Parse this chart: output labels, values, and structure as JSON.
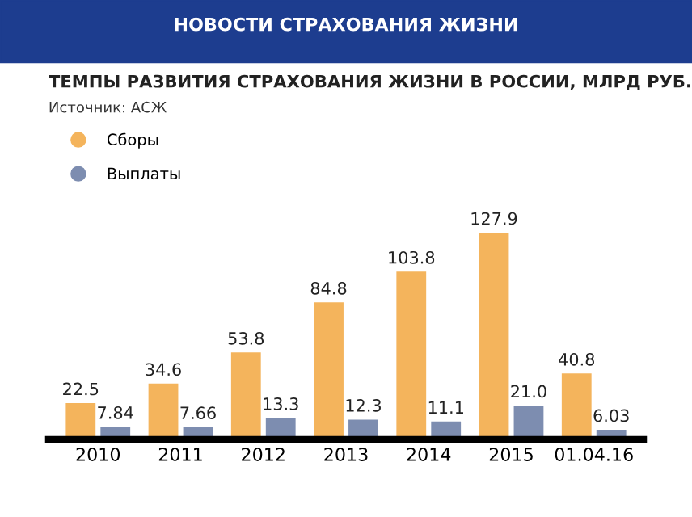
{
  "chart_data": {
    "type": "bar",
    "title": "ТЕМПЫ РАЗВИТИЯ СТРАХОВАНИЯ ЖИЗНИ В РОССИИ, МЛРД РУБ.",
    "subtitle": "Источник: АСЖ",
    "annotations": [
      "НОВОСТИ СТРАХОВАНИЯ ЖИЗНИ"
    ],
    "categories": [
      "2010",
      "2011",
      "2012",
      "2013",
      "2014",
      "2015",
      "01.04.16"
    ],
    "series": [
      {
        "name": "Сборы",
        "color": "#f4b45c",
        "values": [
          22.5,
          34.6,
          53.8,
          84.8,
          103.8,
          127.9,
          40.8
        ],
        "value_labels": [
          "22.5",
          "34.6",
          "53.8",
          "84.8",
          "103.8",
          "127.9",
          "40.8"
        ]
      },
      {
        "name": "Выплаты",
        "color": "#7d8db0",
        "values": [
          7.84,
          7.66,
          13.3,
          12.3,
          11.1,
          21.0,
          6.03
        ],
        "value_labels": [
          "7.84",
          "7.66",
          "13.3",
          "12.3",
          "11.1",
          "21.0",
          "6.03"
        ]
      }
    ],
    "legend": "top left",
    "grid": false
  }
}
